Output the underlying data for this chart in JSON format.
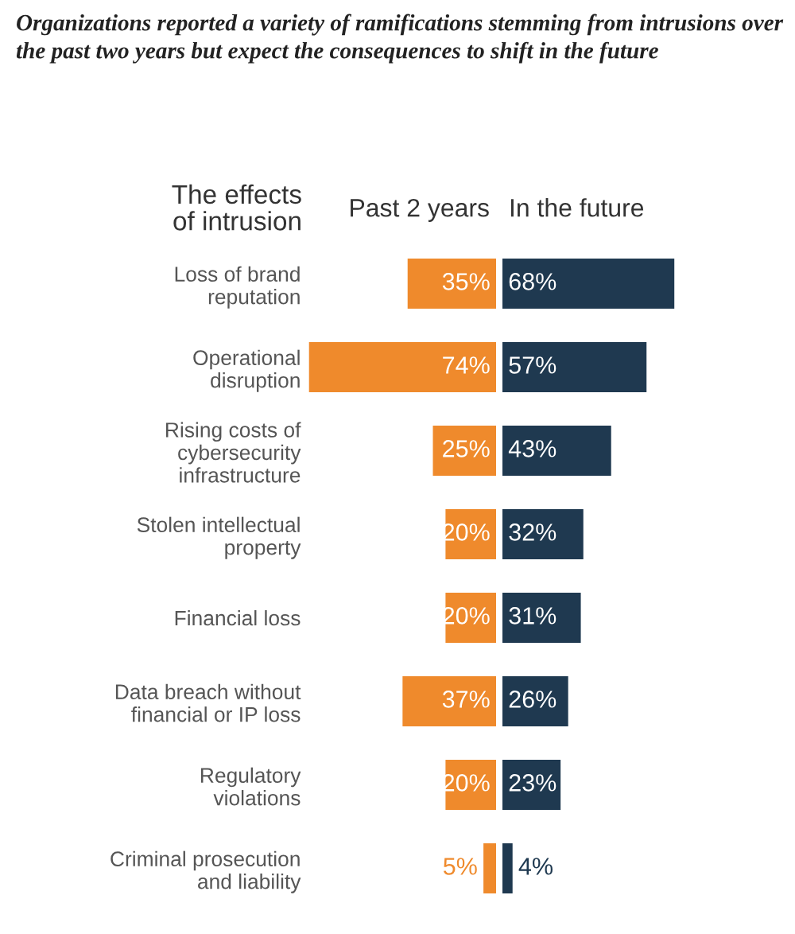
{
  "chart_data": [
    {
      "type": "bar",
      "orientation": "horizontal",
      "title": "Organizations reported a variety of ramifications stemming from intrusions over the past two years but expect the consequences to shift in the future",
      "ylabel": "The effects\nof intrusion",
      "categories": [
        "Loss of brand\nreputation",
        "Operational\ndisruption",
        "Rising costs of\ncybersecurity\ninfrastructure",
        "Stolen intellectual\nproperty",
        "Financial loss",
        "Data breach without\nfinancial or IP loss",
        "Regulatory\nviolations",
        "Criminal prosecution\nand liability"
      ],
      "series": [
        {
          "name": "Past 2 years",
          "color": "#ef8a2c",
          "values": [
            35,
            74,
            25,
            20,
            20,
            37,
            20,
            5
          ],
          "value_labels": [
            "35%",
            "74%",
            "25%",
            "20%",
            "20%",
            "37%",
            "20%",
            "5%"
          ]
        }
      ]
    },
    {
      "type": "bar",
      "orientation": "horizontal",
      "categories": [
        null,
        null,
        null,
        null,
        null,
        null,
        null,
        null
      ],
      "series": [
        {
          "name": "In the future",
          "color": "#1f3950",
          "values": [
            68,
            57,
            43,
            32,
            31,
            26,
            23,
            4
          ],
          "value_labels": [
            "68%",
            "57%",
            "43%",
            "32%",
            "31%",
            "26%",
            "23%",
            "4%"
          ]
        }
      ]
    }
  ]
}
